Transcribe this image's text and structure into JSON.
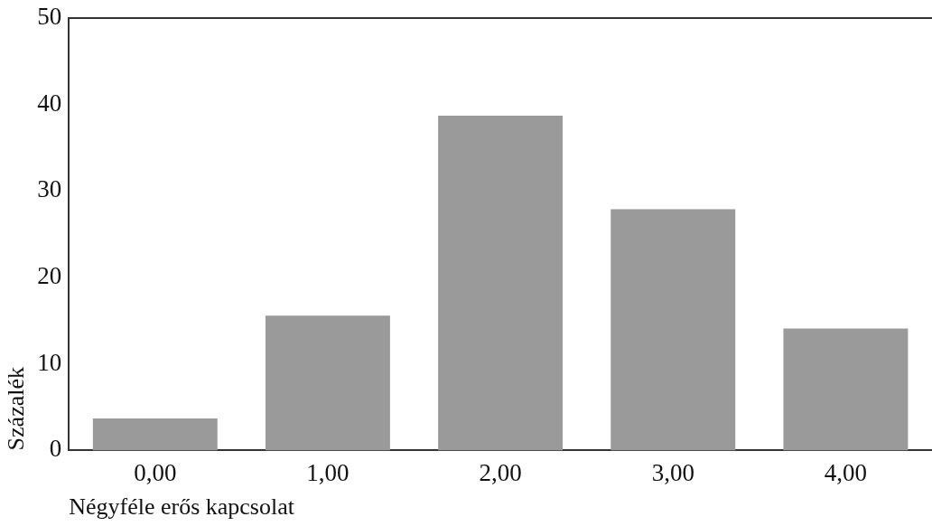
{
  "chart_data": {
    "type": "bar",
    "xlabel": "Négyféle erős kapcsolat",
    "ylabel": "Százalék",
    "categories": [
      "0,00",
      "1,00",
      "2,00",
      "3,00",
      "4,00"
    ],
    "values": [
      3.7,
      15.6,
      38.7,
      27.9,
      14.1
    ],
    "color": "#9a9a9a",
    "ylim": [
      0,
      50
    ],
    "yticks": [
      0,
      10,
      20,
      30,
      40,
      50
    ],
    "grid": false,
    "legend": false
  }
}
